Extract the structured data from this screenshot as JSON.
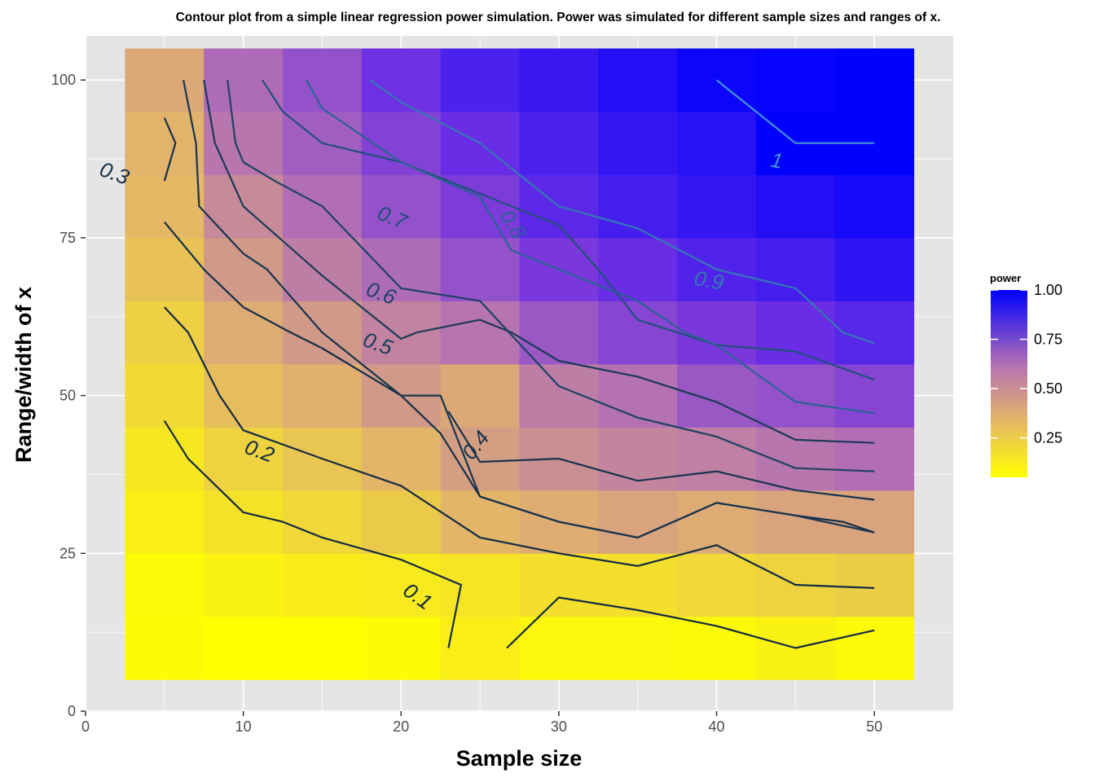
{
  "chart_data": {
    "type": "heatmap",
    "title": "Contour plot from a simple linear regression power simulation. Power was simulated for different sample sizes and ranges of x.",
    "xlabel": "Sample size",
    "ylabel": "Range/width of x",
    "xlim": [
      0,
      55
    ],
    "ylim": [
      0,
      107
    ],
    "x_ticks": [
      0,
      10,
      20,
      30,
      40,
      50
    ],
    "y_ticks": [
      0,
      25,
      50,
      75,
      100
    ],
    "x_tick_labels": [
      "0",
      "10",
      "20",
      "30",
      "40",
      "50"
    ],
    "y_tick_labels": [
      "0",
      "25",
      "50",
      "75",
      "100"
    ],
    "grid": true,
    "legend": {
      "title": "power",
      "placement": "right",
      "ticks": [
        0.25,
        0.5,
        0.75,
        1.0
      ],
      "tick_labels": [
        "0.25",
        "0.50",
        "0.75",
        "1.00"
      ],
      "range": [
        0.05,
        1.0
      ],
      "low_color": "#ffff00",
      "high_color": "#0000ff"
    },
    "colors": {
      "panel_background": "#e5e5e5",
      "grid": "#ffffff",
      "low": "#ffff00",
      "high": "#0000ff"
    },
    "x": [
      5,
      10,
      15,
      20,
      25,
      30,
      35,
      40,
      45,
      50
    ],
    "y": [
      10,
      20,
      30,
      40,
      50,
      60,
      70,
      80,
      90,
      100
    ],
    "power": [
      [
        0.06,
        0.05,
        0.05,
        0.06,
        0.11,
        0.08,
        0.08,
        0.07,
        0.1,
        0.07
      ],
      [
        0.07,
        0.1,
        0.12,
        0.13,
        0.15,
        0.17,
        0.17,
        0.2,
        0.22,
        0.24
      ],
      [
        0.11,
        0.16,
        0.2,
        0.25,
        0.33,
        0.36,
        0.4,
        0.37,
        0.4,
        0.4
      ],
      [
        0.14,
        0.22,
        0.27,
        0.33,
        0.42,
        0.48,
        0.52,
        0.54,
        0.58,
        0.61
      ],
      [
        0.19,
        0.3,
        0.35,
        0.44,
        0.38,
        0.55,
        0.6,
        0.68,
        0.7,
        0.74
      ],
      [
        0.23,
        0.37,
        0.44,
        0.53,
        0.59,
        0.68,
        0.74,
        0.78,
        0.82,
        0.85
      ],
      [
        0.28,
        0.44,
        0.55,
        0.62,
        0.7,
        0.78,
        0.82,
        0.86,
        0.88,
        0.92
      ],
      [
        0.32,
        0.5,
        0.61,
        0.7,
        0.77,
        0.84,
        0.88,
        0.91,
        0.94,
        0.96
      ],
      [
        0.34,
        0.58,
        0.66,
        0.75,
        0.82,
        0.87,
        0.91,
        0.93,
        1.0,
        1.0
      ],
      [
        0.38,
        0.62,
        0.7,
        0.81,
        0.87,
        0.9,
        0.94,
        0.98,
        0.99,
        1.0
      ]
    ],
    "contours": [
      {
        "level": 0.1,
        "label": "0.1",
        "color": "#132b43",
        "segments": [
          [
            [
              5,
              46
            ],
            [
              6.5,
              40
            ],
            [
              10,
              31.5
            ],
            [
              12.5,
              30
            ],
            [
              15,
              27.5
            ],
            [
              20,
              24
            ],
            [
              23.8,
              20
            ],
            [
              23,
              10
            ]
          ],
          [
            [
              26.7,
              10
            ],
            [
              30,
              18
            ],
            [
              35,
              16
            ],
            [
              40,
              13.5
            ],
            [
              45,
              10
            ],
            [
              50,
              12.8
            ]
          ]
        ]
      },
      {
        "level": 0.2,
        "label": "0.2",
        "color": "#132b43",
        "segments": [
          [
            [
              5,
              64
            ],
            [
              6.5,
              60
            ],
            [
              8.5,
              50
            ],
            [
              10,
              44.5
            ],
            [
              15,
              40
            ],
            [
              20,
              35.7
            ],
            [
              25,
              27.5
            ],
            [
              30,
              25
            ],
            [
              35,
              23
            ],
            [
              40,
              26.3
            ],
            [
              45,
              20
            ],
            [
              50,
              19.5
            ]
          ]
        ]
      },
      {
        "level": 0.3,
        "label": "0.3",
        "color": "#15304a",
        "segments": [
          [
            [
              5,
              84
            ],
            [
              5.7,
              90
            ],
            [
              5,
              94
            ]
          ],
          [
            [
              5,
              77.5
            ],
            [
              7.5,
              70
            ],
            [
              10,
              64
            ],
            [
              13,
              60
            ],
            [
              15,
              57.5
            ],
            [
              20,
              50
            ],
            [
              22.5,
              44
            ],
            [
              25,
              34
            ],
            [
              30,
              30
            ],
            [
              35,
              27.5
            ],
            [
              40,
              33
            ],
            [
              45,
              31
            ],
            [
              48,
              30
            ],
            [
              50,
              28.3
            ]
          ]
        ]
      },
      {
        "level": 0.4,
        "label": "0.4",
        "color": "#18344f",
        "segments": [
          [
            [
              6.2,
              100
            ],
            [
              7,
              90
            ],
            [
              7.2,
              80
            ],
            [
              10,
              72.5
            ],
            [
              11.5,
              70
            ],
            [
              15,
              60
            ],
            [
              20,
              50
            ],
            [
              22.5,
              50
            ],
            [
              25,
              34
            ],
            [
              30,
              30
            ],
            [
              35,
              27.5
            ],
            [
              40,
              33
            ],
            [
              45,
              31
            ],
            [
              50,
              28.3
            ]
          ],
          [
            [
              23,
              47.5
            ],
            [
              25,
              39.5
            ],
            [
              30,
              40
            ],
            [
              35,
              36.5
            ],
            [
              40,
              38
            ],
            [
              45,
              35
            ],
            [
              50,
              33.5
            ]
          ]
        ]
      },
      {
        "level": 0.5,
        "label": "0.5",
        "color": "#1b3a58",
        "segments": [
          [
            [
              7.5,
              100
            ],
            [
              8.2,
              90
            ],
            [
              10,
              80
            ],
            [
              15,
              69
            ],
            [
              18,
              63
            ],
            [
              20,
              59
            ],
            [
              21,
              60
            ],
            [
              25,
              62
            ],
            [
              27,
              60
            ],
            [
              30,
              55.5
            ],
            [
              35,
              53
            ],
            [
              40,
              49
            ],
            [
              45,
              43
            ],
            [
              50,
              42.5
            ]
          ]
        ]
      },
      {
        "level": 0.6,
        "label": "0.6",
        "color": "#1e4264",
        "segments": [
          [
            [
              9,
              100
            ],
            [
              9.5,
              90
            ],
            [
              10,
              87
            ],
            [
              12,
              84
            ],
            [
              15,
              80
            ],
            [
              20,
              67
            ],
            [
              25,
              65
            ],
            [
              30,
              51.5
            ],
            [
              35,
              46.5
            ],
            [
              40,
              43.5
            ],
            [
              45,
              38.5
            ],
            [
              50,
              38
            ]
          ]
        ]
      },
      {
        "level": 0.7,
        "label": "0.7",
        "color": "#224f7a",
        "segments": [
          [
            [
              11.2,
              100
            ],
            [
              12.5,
              95
            ],
            [
              15,
              90
            ],
            [
              20,
              87
            ],
            [
              25,
              82
            ],
            [
              30,
              77
            ],
            [
              32.5,
              70
            ],
            [
              35,
              62
            ],
            [
              40,
              58
            ],
            [
              45,
              57
            ],
            [
              50,
              52.5
            ]
          ]
        ]
      },
      {
        "level": 0.8,
        "label": "0.8",
        "color": "#2a6195",
        "segments": [
          [
            [
              14,
              100
            ],
            [
              15,
              95.5
            ],
            [
              20,
              87
            ],
            [
              25,
              81.5
            ],
            [
              27,
              73
            ],
            [
              30,
              70
            ],
            [
              35,
              65
            ],
            [
              38,
              60
            ],
            [
              40,
              58
            ],
            [
              45,
              49
            ],
            [
              50,
              47.2
            ]
          ]
        ]
      },
      {
        "level": 0.9,
        "label": "0.9",
        "color": "#3478b5",
        "segments": [
          [
            [
              18,
              100
            ],
            [
              20,
              96.5
            ],
            [
              25,
              90
            ],
            [
              30,
              80
            ],
            [
              35,
              76.5
            ],
            [
              40,
              70
            ],
            [
              45,
              67
            ],
            [
              48,
              60
            ],
            [
              50,
              58.3
            ]
          ]
        ]
      },
      {
        "level": 1.0,
        "label": "1",
        "color": "#4293d6",
        "segments": [
          [
            [
              40,
              100
            ],
            [
              45,
              90
            ],
            [
              50,
              90
            ]
          ]
        ]
      }
    ],
    "contour_labels": [
      {
        "text": "0.1",
        "x": 21,
        "y": 18,
        "angle": 35,
        "color": "#132b43"
      },
      {
        "text": "0.2",
        "x": 11,
        "y": 41,
        "angle": 20,
        "color": "#132b43"
      },
      {
        "text": "0.3",
        "x": 1.8,
        "y": 85,
        "angle": 20,
        "color": "#15304a"
      },
      {
        "text": "0.4",
        "x": 24.8,
        "y": 42,
        "angle": -52,
        "color": "#18344f"
      },
      {
        "text": "0.5",
        "x": 18.5,
        "y": 58,
        "angle": 20,
        "color": "#1b3a58"
      },
      {
        "text": "0.6",
        "x": 18.7,
        "y": 66,
        "angle": 20,
        "color": "#1e4264"
      },
      {
        "text": "0.7",
        "x": 19.4,
        "y": 78,
        "angle": 22,
        "color": "#224f7a"
      },
      {
        "text": "0.8",
        "x": 27,
        "y": 77,
        "angle": 58,
        "color": "#2a6195"
      },
      {
        "text": "0.9",
        "x": 39.5,
        "y": 68,
        "angle": 10,
        "color": "#3478b5"
      },
      {
        "text": "1",
        "x": 43.8,
        "y": 87,
        "angle": 10,
        "color": "#4293d6"
      }
    ]
  }
}
